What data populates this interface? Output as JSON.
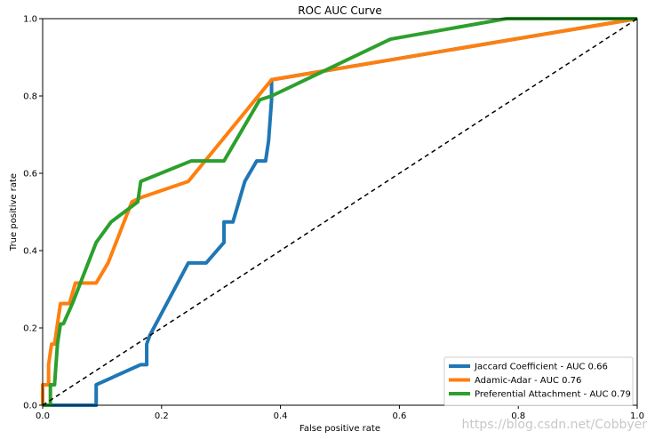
{
  "chart_data": {
    "type": "line",
    "title": "ROC AUC Curve",
    "xlabel": "False positive rate",
    "ylabel": "True positive rate",
    "xlim": [
      0,
      1
    ],
    "ylim": [
      0,
      1
    ],
    "x_ticks": [
      "0.0",
      "0.2",
      "0.4",
      "0.6",
      "0.8",
      "1.0"
    ],
    "y_ticks": [
      "0.0",
      "0.2",
      "0.4",
      "0.6",
      "0.8",
      "1.0"
    ],
    "legend_position": "bottom-right",
    "grid": false,
    "series": [
      {
        "name": "Jaccard Coefficient - AUC 0.66",
        "color": "#1f77b4",
        "x": [
          0,
          0.09,
          0.09,
          0.165,
          0.175,
          0.175,
          0.18,
          0.245,
          0.275,
          0.305,
          0.305,
          0.32,
          0.34,
          0.36,
          0.375,
          0.38,
          0.385,
          0.385,
          1.0
        ],
        "y": [
          0,
          0,
          0.053,
          0.105,
          0.105,
          0.158,
          0.18,
          0.368,
          0.368,
          0.421,
          0.474,
          0.474,
          0.579,
          0.632,
          0.632,
          0.684,
          0.79,
          0.842,
          1.0
        ]
      },
      {
        "name": "Adamic-Adar - AUC 0.76",
        "color": "#ff7f0e",
        "x": [
          0,
          0,
          0.01,
          0.01,
          0.015,
          0.02,
          0.025,
          0.03,
          0.045,
          0.055,
          0.09,
          0.11,
          0.15,
          0.165,
          0.245,
          0.385,
          1.0
        ],
        "y": [
          0,
          0.053,
          0.053,
          0.105,
          0.158,
          0.158,
          0.211,
          0.263,
          0.263,
          0.316,
          0.316,
          0.368,
          0.526,
          0.537,
          0.579,
          0.842,
          1.0
        ]
      },
      {
        "name": "Preferential Attachment - AUC 0.79",
        "color": "#2ca02c",
        "x": [
          0,
          0.013,
          0.013,
          0.02,
          0.025,
          0.03,
          0.035,
          0.05,
          0.09,
          0.115,
          0.16,
          0.165,
          0.25,
          0.305,
          0.365,
          0.385,
          0.585,
          0.78,
          1.0
        ],
        "y": [
          0,
          0,
          0.053,
          0.053,
          0.16,
          0.21,
          0.211,
          0.263,
          0.421,
          0.474,
          0.526,
          0.579,
          0.632,
          0.632,
          0.79,
          0.8,
          0.947,
          1.0,
          1.0
        ]
      },
      {
        "color": "#000000",
        "dashed": true,
        "x": [
          0,
          1
        ],
        "y": [
          0,
          1
        ]
      }
    ]
  },
  "watermark": "https://blog.csdn.net/Cobbyer"
}
